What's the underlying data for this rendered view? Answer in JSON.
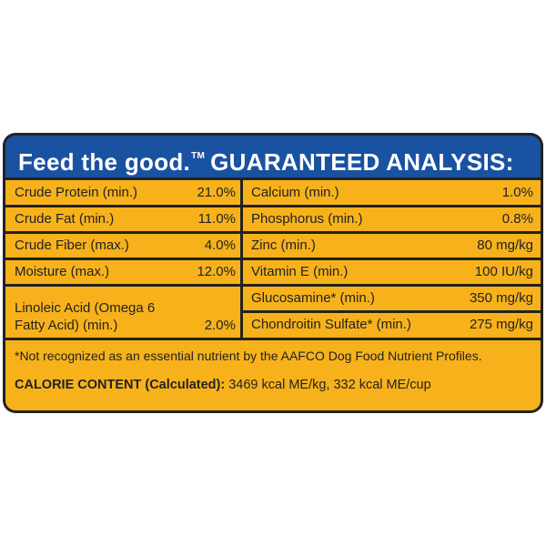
{
  "header": {
    "brand": "Feed the good.",
    "trademark": "TM",
    "title": "GUARANTEED ANALYSIS:"
  },
  "left_rows": [
    {
      "label": "Crude Protein (min.)",
      "value": "21.0%"
    },
    {
      "label": "Crude Fat (min.)",
      "value": "11.0%"
    },
    {
      "label": "Crude Fiber (max.)",
      "value": "4.0%"
    },
    {
      "label": "Moisture (max.)",
      "value": "12.0%"
    }
  ],
  "linoleic": {
    "label_line1": "Linoleic Acid (Omega 6",
    "label_line2": "Fatty Acid) (min.)",
    "value": "2.0%"
  },
  "right_rows": [
    {
      "label": "Calcium (min.)",
      "value": "1.0%"
    },
    {
      "label": "Phosphorus (min.)",
      "value": "0.8%"
    },
    {
      "label": "Zinc (min.)",
      "value": "80 mg/kg"
    },
    {
      "label": "Vitamin E (min.)",
      "value": "100 IU/kg"
    },
    {
      "label": "Glucosamine* (min.)",
      "value": "350 mg/kg"
    },
    {
      "label": "Chondroitin Sulfate* (min.)",
      "value": "275 mg/kg"
    }
  ],
  "footnote": "*Not recognized as an essential nutrient by the AAFCO Dog Food Nutrient Profiles.",
  "calorie": {
    "label": "CALORIE CONTENT (Calculated):",
    "value": " 3469 kcal ME/kg, 332 kcal ME/cup"
  },
  "colors": {
    "header_blue": "#1a52a2",
    "panel_yellow": "#f7b21b",
    "border_dark": "#222222"
  }
}
